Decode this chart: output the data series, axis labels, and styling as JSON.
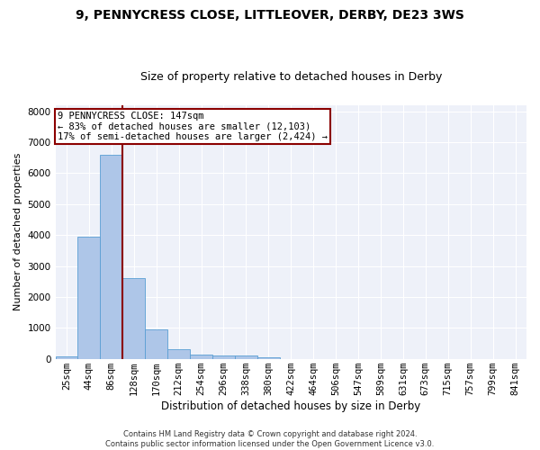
{
  "title_line1": "9, PENNYCRESS CLOSE, LITTLEOVER, DERBY, DE23 3WS",
  "title_line2": "Size of property relative to detached houses in Derby",
  "xlabel": "Distribution of detached houses by size in Derby",
  "ylabel": "Number of detached properties",
  "footnote": "Contains HM Land Registry data © Crown copyright and database right 2024.\nContains public sector information licensed under the Open Government Licence v3.0.",
  "bar_labels": [
    "25sqm",
    "44sqm",
    "86sqm",
    "128sqm",
    "170sqm",
    "212sqm",
    "254sqm",
    "296sqm",
    "338sqm",
    "380sqm",
    "422sqm",
    "464sqm",
    "506sqm",
    "547sqm",
    "589sqm",
    "631sqm",
    "673sqm",
    "715sqm",
    "757sqm",
    "799sqm",
    "841sqm"
  ],
  "bar_values": [
    80,
    3950,
    6600,
    2620,
    950,
    310,
    130,
    110,
    100,
    60,
    0,
    0,
    0,
    0,
    0,
    0,
    0,
    0,
    0,
    0,
    0
  ],
  "bar_color": "#aec6e8",
  "bar_edge_color": "#5a9fd4",
  "vline_color": "#8b0000",
  "annotation_text": "9 PENNYCRESS CLOSE: 147sqm\n← 83% of detached houses are smaller (12,103)\n17% of semi-detached houses are larger (2,424) →",
  "annotation_box_color": "#8b0000",
  "ylim_max": 8200,
  "background_color": "#eef1f9",
  "grid_color": "#ffffff",
  "title_fontsize": 10,
  "subtitle_fontsize": 9,
  "axis_label_fontsize": 8.5,
  "tick_fontsize": 7.5,
  "annotation_fontsize": 7.5,
  "ylabel_fontsize": 8,
  "footnote_fontsize": 6
}
